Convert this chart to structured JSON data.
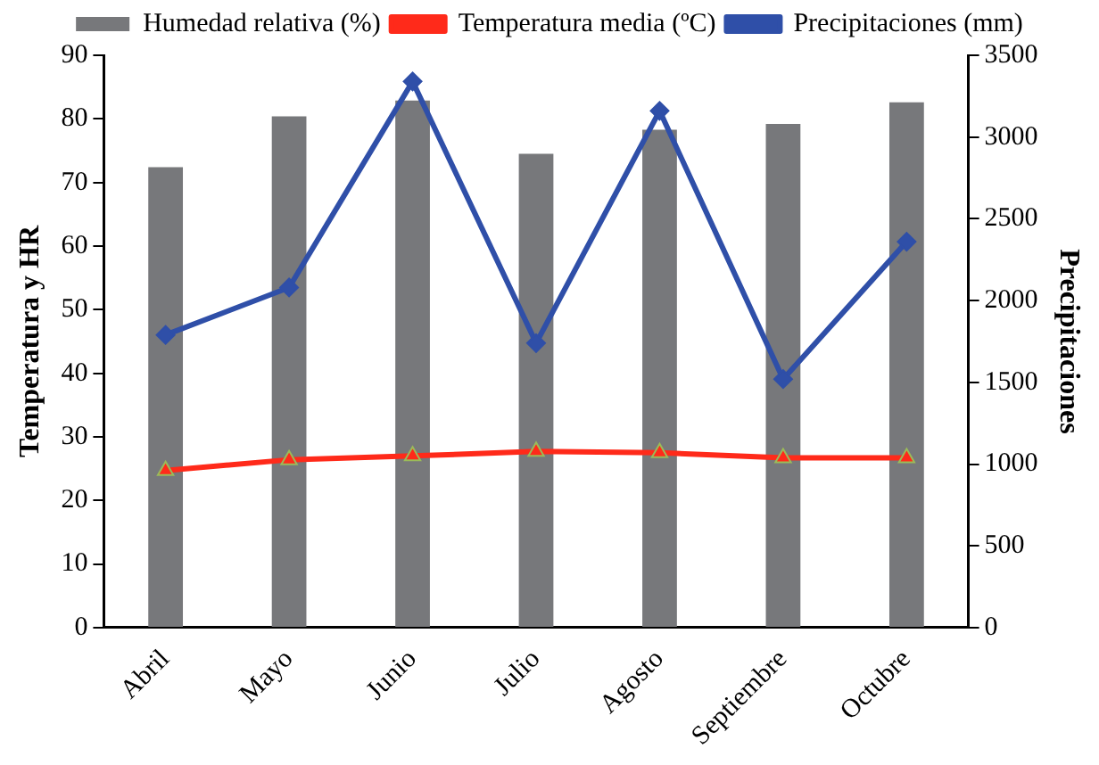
{
  "chart_data": {
    "type": "bar",
    "categories": [
      "Abril",
      "Mayo",
      "Junio",
      "Julio",
      "Agosto",
      "Septiembre",
      "Octubre"
    ],
    "series": [
      {
        "name": "Humedad relativa (%)",
        "color": "#77787b",
        "values": [
          72.4,
          80.4,
          82.9,
          74.5,
          78.3,
          79.2,
          82.6
        ]
      },
      {
        "name": "Temperatura media (ºC)",
        "type": "line",
        "color": "#ff2a1a",
        "marker": "triangle",
        "values": [
          24.7,
          26.4,
          27.0,
          27.7,
          27.5,
          26.7,
          26.7
        ]
      },
      {
        "name": "Precipitaciones (mm)",
        "type": "line",
        "axis": "y2",
        "color": "#2f4fa8",
        "marker": "diamond",
        "values": [
          1790,
          2080,
          3340,
          1740,
          3160,
          1520,
          2360
        ]
      }
    ],
    "ylabel": "Temperatura y HR",
    "y2label": "Precipitaciones",
    "ylim": [
      0,
      90
    ],
    "yticks": [
      0,
      10,
      20,
      30,
      40,
      50,
      60,
      70,
      80,
      90
    ],
    "y2lim": [
      0,
      3500
    ],
    "y2ticks": [
      0,
      500,
      1000,
      1500,
      2000,
      2500,
      3000,
      3500
    ],
    "grid": false,
    "legend": "top"
  }
}
